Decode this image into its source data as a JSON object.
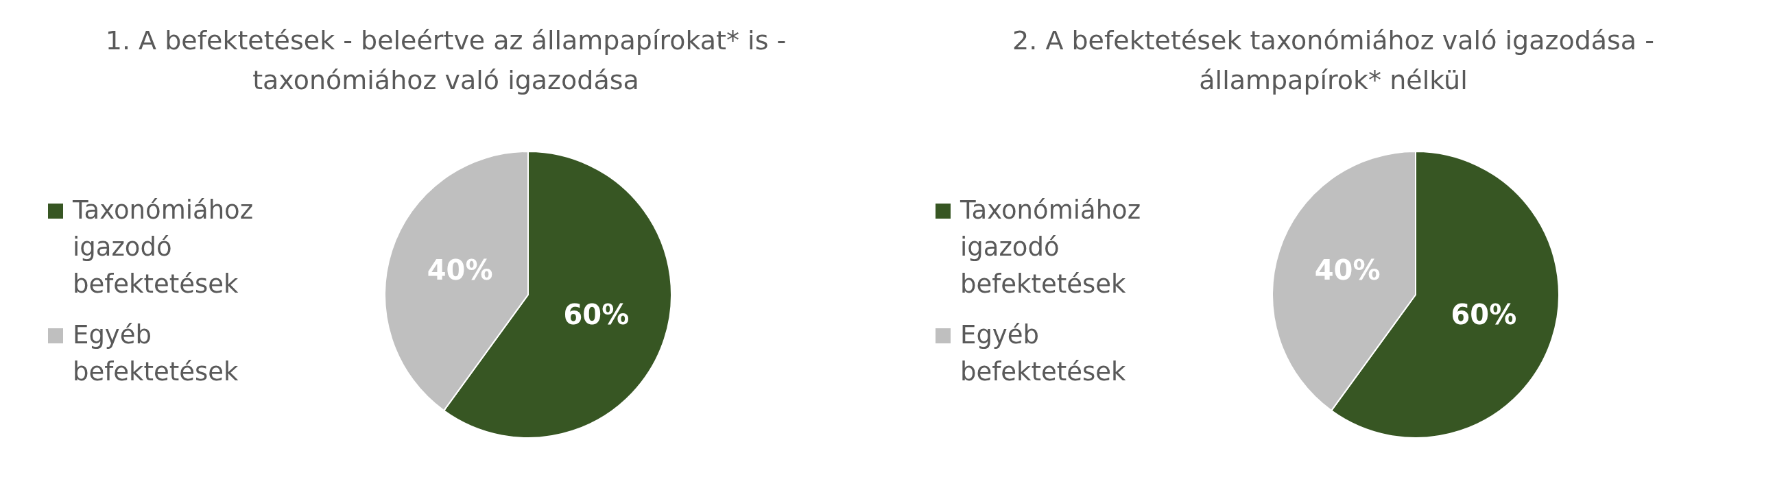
{
  "chart_data": [
    {
      "type": "pie",
      "title": "1. A befektetések - beleértve az állampapírokat* is - taxonómiához való igazodása",
      "categories": [
        "Taxonómiához igazodó befektetések",
        "Egyéb befektetések"
      ],
      "values": [
        60,
        40
      ],
      "value_labels": [
        "60%",
        "40%"
      ],
      "colors": [
        "#375623",
        "#bfbfbf"
      ],
      "legend": "left"
    },
    {
      "type": "pie",
      "title": "2. A befektetések taxonómiához való igazodása - állampapírok* nélkül",
      "categories": [
        "Taxonómiához igazodó befektetések",
        "Egyéb befektetések"
      ],
      "values": [
        60,
        40
      ],
      "value_labels": [
        "60%",
        "40%"
      ],
      "colors": [
        "#375623",
        "#bfbfbf"
      ],
      "legend": "left"
    }
  ]
}
